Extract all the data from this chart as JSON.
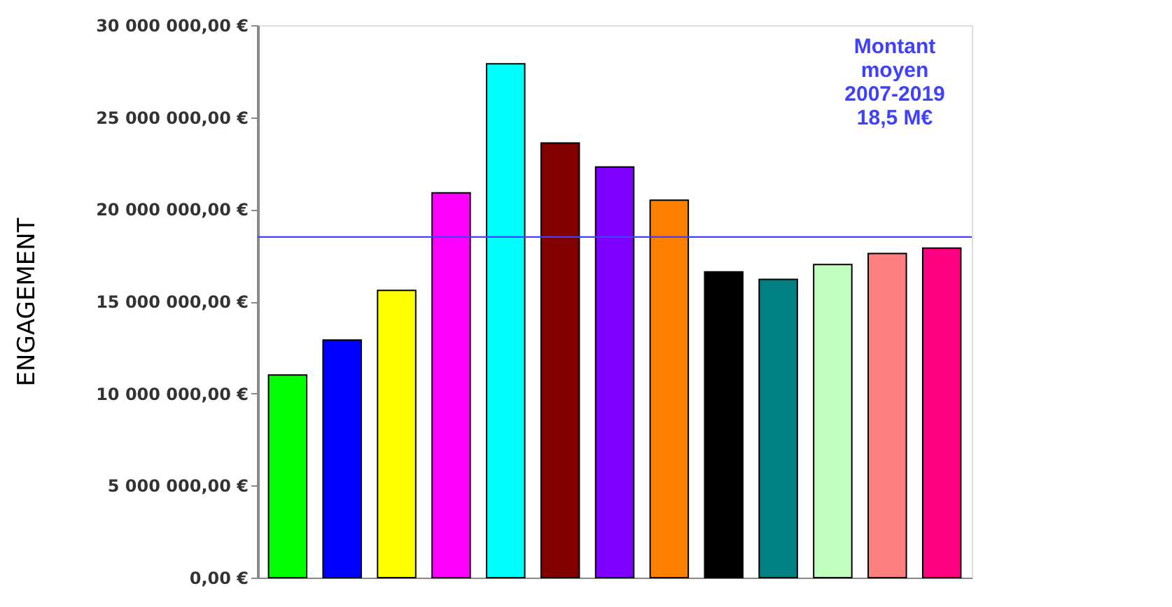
{
  "chart_data": {
    "type": "bar",
    "ylabel": "ENGAGEMENT",
    "categories": [
      null,
      null,
      null,
      null,
      null,
      null,
      null,
      null,
      null,
      null,
      null,
      null,
      null
    ],
    "values": [
      11000000,
      12900000,
      15600000,
      20900000,
      27900000,
      23600000,
      22300000,
      20500000,
      16600000,
      16200000,
      17000000,
      17600000,
      17900000
    ],
    "colors": [
      "#00ff00",
      "#0000ff",
      "#ffff00",
      "#ff00ff",
      "#00ffff",
      "#800000",
      "#8000ff",
      "#ff8000",
      "#000000",
      "#008080",
      "#c0ffc0",
      "#ff8080",
      "#ff0080"
    ],
    "ylim": [
      0,
      30000000
    ],
    "yticks": [
      {
        "value": 0,
        "label": "0,00 €"
      },
      {
        "value": 5000000,
        "label": "5 000 000,00 €"
      },
      {
        "value": 10000000,
        "label": "10 000 000,00 €"
      },
      {
        "value": 15000000,
        "label": "15 000 000,00 €"
      },
      {
        "value": 20000000,
        "label": "20 000 000,00 €"
      },
      {
        "value": 25000000,
        "label": "25 000 000,00 €"
      },
      {
        "value": 30000000,
        "label": "30 000 000,00 €"
      }
    ],
    "ref_lines": [
      {
        "axis": "y",
        "value": 18500000,
        "color": "#4040ff"
      }
    ],
    "annotations": [
      "Montant\nmoyen\n2007-2019\n18,5 M€"
    ],
    "grid": false,
    "tick_labels": "y"
  }
}
